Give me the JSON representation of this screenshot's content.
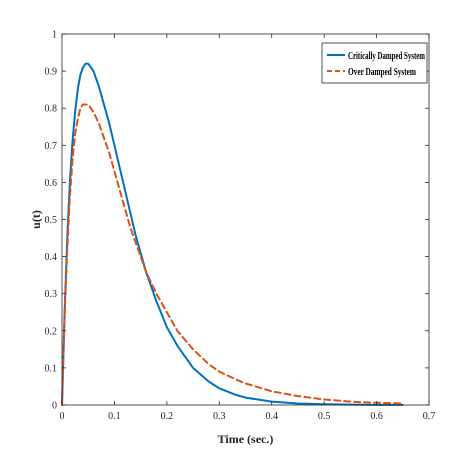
{
  "chart_data": {
    "type": "line",
    "title": "",
    "xlabel": "Time (sec.)",
    "ylabel": "u(t)",
    "xlim": [
      0,
      0.7
    ],
    "ylim": [
      0,
      1
    ],
    "xticks": [
      0,
      0.1,
      0.2,
      0.3,
      0.4,
      0.5,
      0.6,
      0.7
    ],
    "yticks": [
      0,
      0.1,
      0.2,
      0.3,
      0.4,
      0.5,
      0.6,
      0.7,
      0.8,
      0.9,
      1
    ],
    "xtick_labels": [
      "0",
      "0.1",
      "0.2",
      "0.3",
      "0.4",
      "0.5",
      "0.6",
      "0.7"
    ],
    "ytick_labels": [
      "0",
      "0.1",
      "0.2",
      "0.3",
      "0.4",
      "0.5",
      "0.6",
      "0.7",
      "0.8",
      "0.9",
      "1"
    ],
    "grid": false,
    "legend_position": "top-right",
    "series": [
      {
        "name": "Critically Damped System",
        "color": "#0072BD",
        "style": "solid",
        "x": [
          0,
          0.005,
          0.01,
          0.015,
          0.02,
          0.025,
          0.03,
          0.035,
          0.04,
          0.045,
          0.05,
          0.055,
          0.06,
          0.065,
          0.07,
          0.08,
          0.09,
          0.1,
          0.11,
          0.12,
          0.13,
          0.14,
          0.15,
          0.16,
          0.18,
          0.2,
          0.22,
          0.25,
          0.28,
          0.3,
          0.33,
          0.35,
          0.4,
          0.45,
          0.5,
          0.55,
          0.6,
          0.65
        ],
        "values": [
          0,
          0.25,
          0.45,
          0.6,
          0.71,
          0.79,
          0.85,
          0.89,
          0.91,
          0.92,
          0.92,
          0.91,
          0.9,
          0.88,
          0.86,
          0.81,
          0.76,
          0.7,
          0.64,
          0.58,
          0.52,
          0.46,
          0.41,
          0.36,
          0.28,
          0.21,
          0.16,
          0.1,
          0.063,
          0.045,
          0.028,
          0.02,
          0.009,
          0.004,
          0.002,
          0.0009,
          0.0004,
          0.0002
        ]
      },
      {
        "name": "Over Damped System",
        "color": "#D95319",
        "style": "dashed",
        "x": [
          0,
          0.005,
          0.01,
          0.015,
          0.02,
          0.025,
          0.03,
          0.035,
          0.04,
          0.045,
          0.05,
          0.055,
          0.06,
          0.07,
          0.08,
          0.09,
          0.1,
          0.11,
          0.12,
          0.13,
          0.14,
          0.15,
          0.16,
          0.18,
          0.2,
          0.22,
          0.25,
          0.28,
          0.3,
          0.33,
          0.35,
          0.4,
          0.45,
          0.5,
          0.55,
          0.6,
          0.65
        ],
        "values": [
          0,
          0.24,
          0.42,
          0.56,
          0.66,
          0.73,
          0.77,
          0.8,
          0.81,
          0.81,
          0.81,
          0.8,
          0.79,
          0.76,
          0.72,
          0.68,
          0.63,
          0.58,
          0.53,
          0.48,
          0.44,
          0.4,
          0.36,
          0.3,
          0.25,
          0.2,
          0.15,
          0.11,
          0.09,
          0.07,
          0.058,
          0.037,
          0.024,
          0.015,
          0.009,
          0.006,
          0.004
        ]
      }
    ]
  }
}
